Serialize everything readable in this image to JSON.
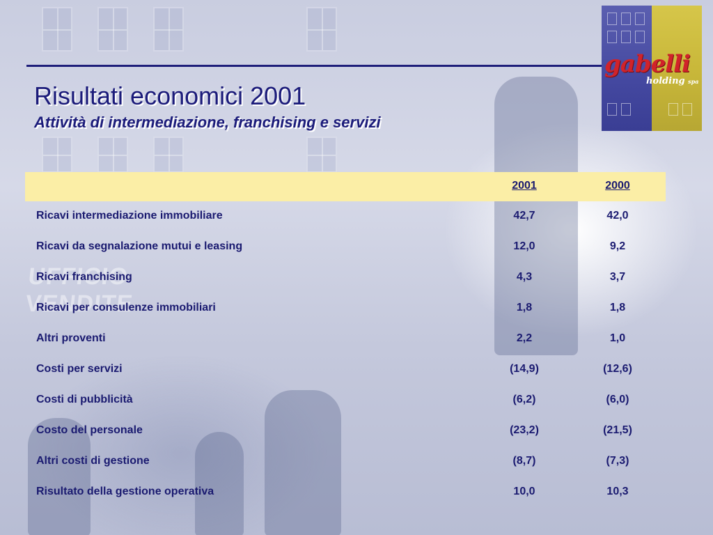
{
  "slide": {
    "title": "Risultati economici 2001",
    "subtitle": "Attività di intermediazione, franchising e servizi"
  },
  "logo": {
    "brand": "gabelli",
    "tagline": "holding",
    "tagline_suffix": "spa"
  },
  "background": {
    "sign_text": "UFFICIO VENDITE"
  },
  "table": {
    "columns": [
      "2001",
      "2000"
    ],
    "rows": [
      {
        "label": "Ricavi intermediazione immobiliare",
        "y2001": "42,7",
        "y2000": "42,0"
      },
      {
        "label": "Ricavi da segnalazione mutui e leasing",
        "y2001": "12,0",
        "y2000": "9,2"
      },
      {
        "label": "Ricavi franchising",
        "y2001": "4,3",
        "y2000": "3,7"
      },
      {
        "label": "Ricavi per consulenze immobiliari",
        "y2001": "1,8",
        "y2000": "1,8"
      },
      {
        "label": "Altri proventi",
        "y2001": "2,2",
        "y2000": "1,0"
      },
      {
        "label": "Costi per servizi",
        "y2001": "(14,9)",
        "y2000": "(12,6)"
      },
      {
        "label": "Costi di pubblicità",
        "y2001": "(6,2)",
        "y2000": "(6,0)"
      },
      {
        "label": "Costo del personale",
        "y2001": "(23,2)",
        "y2000": "(21,5)"
      },
      {
        "label": "Altri costi di gestione",
        "y2001": "(8,7)",
        "y2000": "(7,3)"
      },
      {
        "label": "Risultato della gestione operativa",
        "y2001": "10,0",
        "y2000": "10,3"
      }
    ]
  },
  "colors": {
    "title": "#1b1b7a",
    "header_band": "#fbeea6",
    "rule": "#1e1e7a",
    "logo_red": "#d1232a"
  }
}
